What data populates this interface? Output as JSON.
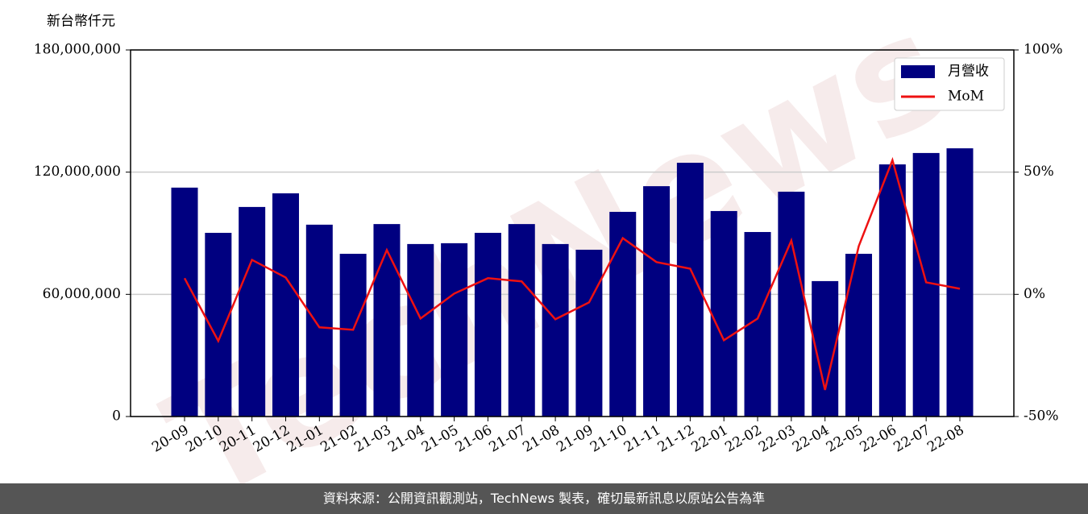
{
  "chart_data": {
    "type": "bar_line",
    "y_label": "新台幣仟元",
    "watermark": "TechNews",
    "categories": [
      "20-09",
      "20-10",
      "20-11",
      "20-12",
      "21-01",
      "21-02",
      "21-03",
      "21-04",
      "21-05",
      "21-06",
      "21-07",
      "21-08",
      "21-09",
      "21-10",
      "21-11",
      "21-12",
      "22-01",
      "22-02",
      "22-03",
      "22-04",
      "22-05",
      "22-06",
      "22-07",
      "22-08"
    ],
    "series": [
      {
        "name": "月營收",
        "type": "bar",
        "color": "#000080",
        "axis": "y",
        "values": [
          112400000,
          90200000,
          102900000,
          109600000,
          94200000,
          79900000,
          94500000,
          84700000,
          85100000,
          90200000,
          94500000,
          84700000,
          81900000,
          100500000,
          113100000,
          124600000,
          100900000,
          90600000,
          110400000,
          66500000,
          79900000,
          123800000,
          129400000,
          131700000
        ]
      },
      {
        "name": "MoM",
        "type": "line",
        "color": "#ee1111",
        "axis": "y2",
        "values": [
          6.6,
          -19.1,
          14.1,
          6.9,
          -13.5,
          -14.5,
          18.1,
          -9.9,
          0.3,
          6.6,
          5.3,
          -10.2,
          -3.3,
          23.0,
          13.2,
          10.5,
          -18.8,
          -9.9,
          22.0,
          -39.1,
          19.7,
          54.9,
          4.9,
          2.3
        ]
      }
    ],
    "ylim": [
      0,
      180000000
    ],
    "yticks": [
      0,
      {
        "value": 60000000,
        "label": "60,000,000"
      },
      {
        "value": 120000000,
        "label": "120,000,000"
      },
      {
        "value": 180000000,
        "label": "180,000,000"
      }
    ],
    "y2lim": [
      -50,
      100
    ],
    "y2ticks": [
      {
        "value": -50,
        "label": "-50%"
      },
      {
        "value": 0,
        "label": "0%"
      },
      {
        "value": 50,
        "label": "50%"
      },
      {
        "value": 100,
        "label": "100%"
      }
    ],
    "grid": true,
    "legend": "upper right"
  },
  "footer": "資料來源：公開資訊觀測站，TechNews 製表，確切最新訊息以原站公告為準"
}
